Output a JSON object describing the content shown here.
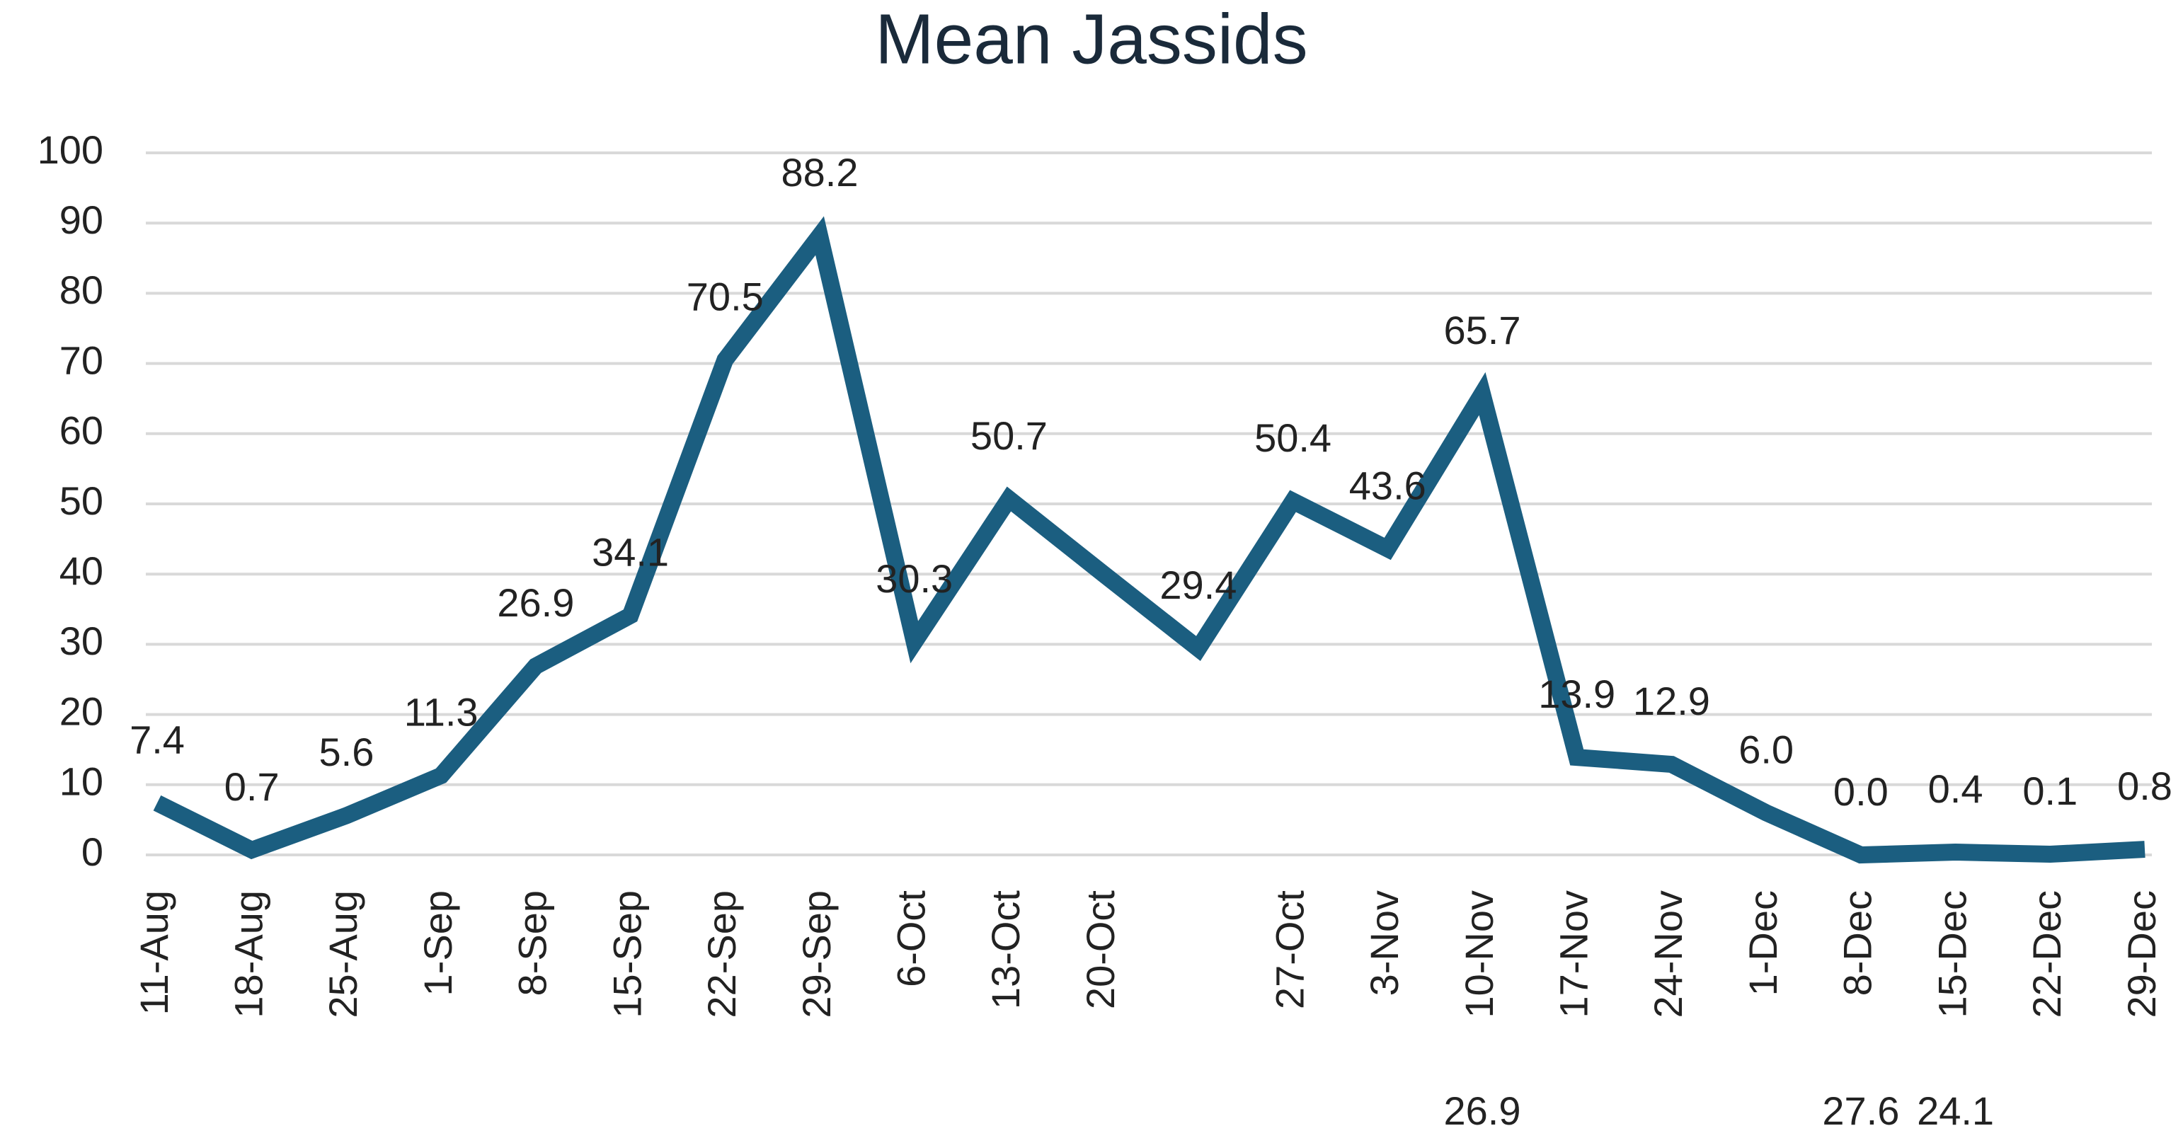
{
  "chart_data": {
    "type": "line",
    "title": "Mean Jassids",
    "categories": [
      "11-Aug",
      "18-Aug",
      "25-Aug",
      "1-Sep",
      "8-Sep",
      "15-Sep",
      "22-Sep",
      "29-Sep",
      "6-Oct",
      "13-Oct",
      "20-Oct",
      null,
      "27-Oct",
      "3-Nov",
      "10-Nov",
      "17-Nov",
      "24-Nov",
      "1-Dec",
      "8-Dec",
      "15-Dec",
      "22-Dec",
      "29-Dec"
    ],
    "series": [
      {
        "name": "Mean Jassids",
        "color": "#1b5e80",
        "values": [
          7.4,
          0.7,
          5.6,
          11.3,
          26.9,
          34.1,
          70.5,
          88.2,
          30.3,
          50.7,
          40,
          29.4,
          50.4,
          43.6,
          65.7,
          13.9,
          12.9,
          6.0,
          0.0,
          0.4,
          0.1,
          0.8
        ],
        "value_labels": [
          "7.4",
          "0.7",
          "5.6",
          "11.3",
          "26.9",
          "34.1",
          "70.5",
          "88.2",
          "30.3",
          "50.7",
          null,
          "29.4",
          "50.4",
          "43.6",
          "65.7",
          "13.9",
          "12.9",
          "6.0",
          "0.0",
          "0.4",
          "0.1",
          "0.8"
        ]
      }
    ],
    "ylim": [
      0,
      100
    ],
    "yticks": [
      0,
      10,
      20,
      30,
      40,
      50,
      60,
      70,
      80,
      90,
      100
    ],
    "grid": true,
    "annotations": [
      {
        "text": "26.9",
        "category": "10-Nov"
      },
      {
        "text": "27.6",
        "category": "8-Dec"
      },
      {
        "text": "24.1",
        "category": "15-Dec"
      }
    ]
  }
}
